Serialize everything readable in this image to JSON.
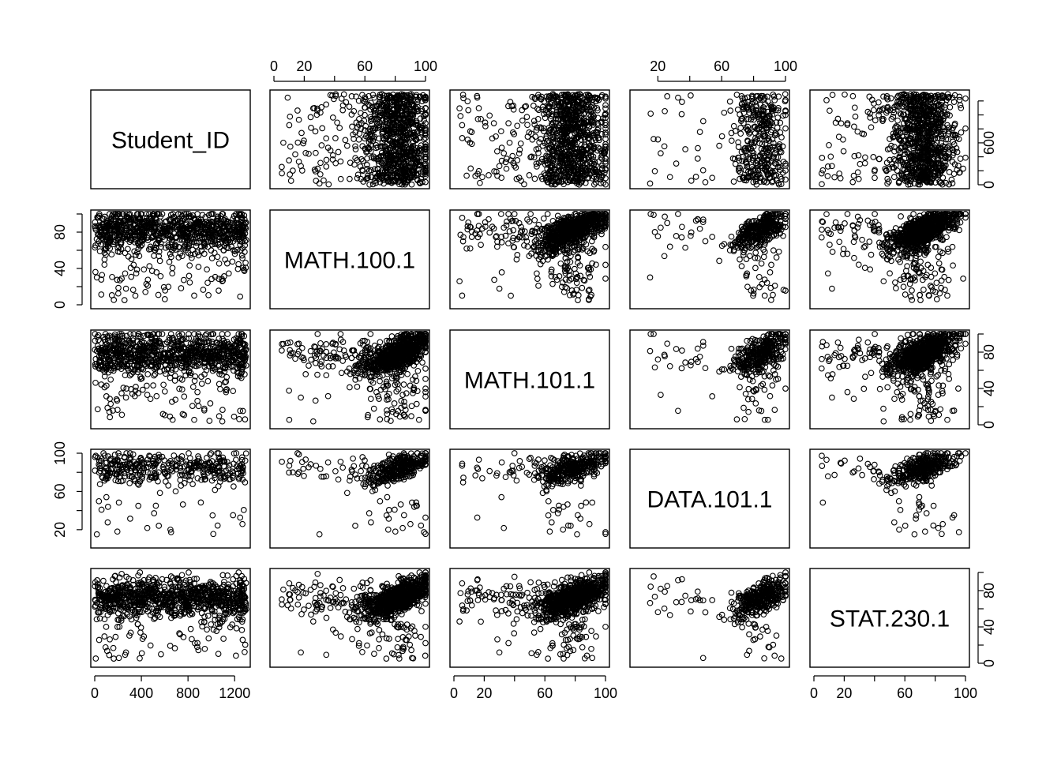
{
  "chart_data": {
    "type": "scatter",
    "kind": "scatterplot-matrix",
    "title": "",
    "variables": [
      {
        "name": "Student_ID",
        "range": [
          0,
          1300
        ],
        "axis_ticks": [
          0,
          400,
          800,
          1200
        ],
        "axis_tick_labels": [
          "0",
          "400",
          "800",
          "1200"
        ],
        "right_ticks": [
          0,
          600
        ],
        "right_tick_labels": [
          "0",
          "600"
        ],
        "minor_right_ticks": [
          200,
          400,
          800,
          1000,
          1200
        ]
      },
      {
        "name": "MATH.100.1",
        "range": [
          0,
          100
        ],
        "axis_ticks": [
          0,
          20,
          40,
          60,
          80,
          100
        ],
        "axis_tick_labels": [
          "0",
          "20",
          "",
          "60",
          "",
          "100"
        ],
        "left_ticks": [
          0,
          40,
          80
        ],
        "left_tick_labels": [
          "0",
          "40",
          "80"
        ],
        "minor_left_ticks": [
          20,
          60,
          100
        ]
      },
      {
        "name": "MATH.101.1",
        "range": [
          0,
          100
        ],
        "axis_ticks": [
          0,
          20,
          40,
          60,
          80,
          100
        ],
        "axis_tick_labels": [
          "0",
          "20",
          "",
          "60",
          "",
          "100"
        ],
        "right_ticks": [
          0,
          40,
          80
        ],
        "right_tick_labels": [
          "0",
          "40",
          "80"
        ],
        "minor_right_ticks": [
          20,
          60,
          100
        ]
      },
      {
        "name": "DATA.101.1",
        "range": [
          5,
          100
        ],
        "axis_ticks": [
          20,
          40,
          60,
          80,
          100
        ],
        "axis_tick_labels": [
          "20",
          "",
          "60",
          "",
          "100"
        ],
        "left_ticks": [
          20,
          60,
          100
        ],
        "left_tick_labels": [
          "20",
          "60",
          "100"
        ],
        "minor_left_ticks": [
          40,
          80
        ]
      },
      {
        "name": "STAT.230.1",
        "range": [
          0,
          100
        ],
        "axis_ticks": [
          0,
          20,
          40,
          60,
          80,
          100
        ],
        "axis_tick_labels": [
          "0",
          "20",
          "",
          "60",
          "",
          "100"
        ],
        "right_ticks": [
          0,
          40,
          80
        ],
        "right_tick_labels": [
          "0",
          "40",
          "80"
        ],
        "minor_right_ticks": [
          20,
          60,
          100
        ]
      }
    ],
    "axis_placement": {
      "top": [
        1,
        3
      ],
      "bottom": [
        0,
        2,
        4
      ],
      "left": [
        1,
        3
      ],
      "right": [
        0,
        2,
        4
      ]
    },
    "sample_size_approx": 1300,
    "point_style": "open-circle",
    "grid": false,
    "legend": "none"
  }
}
